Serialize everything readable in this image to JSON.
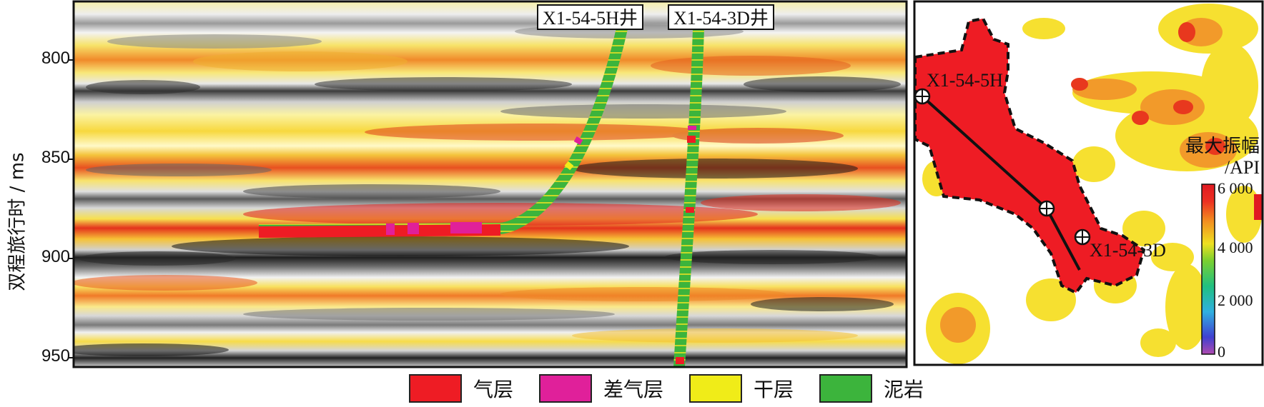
{
  "seismic_section": {
    "y_axis_label": "双程旅行时 / ms",
    "y_ticks": [
      "800",
      "850",
      "900",
      "950"
    ],
    "well_labels": [
      "X1-54-5H井",
      "X1-54-3D井"
    ]
  },
  "amplitude_map": {
    "well_labels": [
      "X1-54-5H",
      "X1-54-3D"
    ],
    "colorbar": {
      "title_line1": "最大振幅",
      "title_line2": "/API",
      "ticks": [
        "6 000",
        "4 000",
        "2 000",
        "0"
      ]
    }
  },
  "legend": [
    {
      "label": "气层",
      "color": "#ee1c24"
    },
    {
      "label": "差气层",
      "color": "#e0209a"
    },
    {
      "label": "干层",
      "color": "#f0ec18"
    },
    {
      "label": "泥岩",
      "color": "#3cb43c"
    }
  ],
  "colors": {
    "gas": "#ee1c24",
    "poor_gas": "#e0209a",
    "dry": "#f0ec18",
    "mudstone": "#3cb43c",
    "border": "#111111"
  }
}
